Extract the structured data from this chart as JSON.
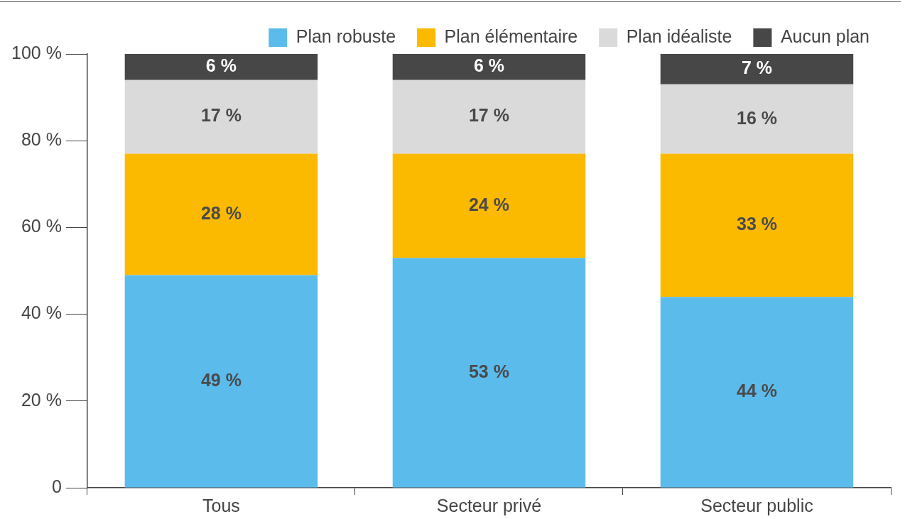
{
  "chart_data": {
    "type": "bar",
    "stacked": true,
    "categories": [
      "Tous",
      "Secteur privé",
      "Secteur public"
    ],
    "series": [
      {
        "name": "Plan robuste",
        "color": "#5bbcec",
        "values": [
          49,
          53,
          44
        ],
        "value_labels": [
          "49 %",
          "53 %",
          "44 %"
        ]
      },
      {
        "name": "Plan élémentaire",
        "color": "#fbb900",
        "values": [
          28,
          24,
          33
        ],
        "value_labels": [
          "28 %",
          "24 %",
          "33 %"
        ]
      },
      {
        "name": "Plan idéaliste",
        "color": "#dadada",
        "values": [
          17,
          17,
          16
        ],
        "value_labels": [
          "17 %",
          "17 %",
          "16 %"
        ]
      },
      {
        "name": "Aucun plan",
        "color": "#474747",
        "values": [
          6,
          6,
          7
        ],
        "value_labels": [
          "6 %",
          "6 %",
          "7 %"
        ]
      }
    ],
    "ylim": [
      0,
      100
    ],
    "yticks": [
      {
        "value": 0,
        "label": "0"
      },
      {
        "value": 20,
        "label": "20 %"
      },
      {
        "value": 40,
        "label": "40 %"
      },
      {
        "value": 60,
        "label": "60 %"
      },
      {
        "value": 80,
        "label": "80 %"
      },
      {
        "value": 100,
        "label": "100 %"
      }
    ],
    "grid": false,
    "legend": "top right"
  }
}
